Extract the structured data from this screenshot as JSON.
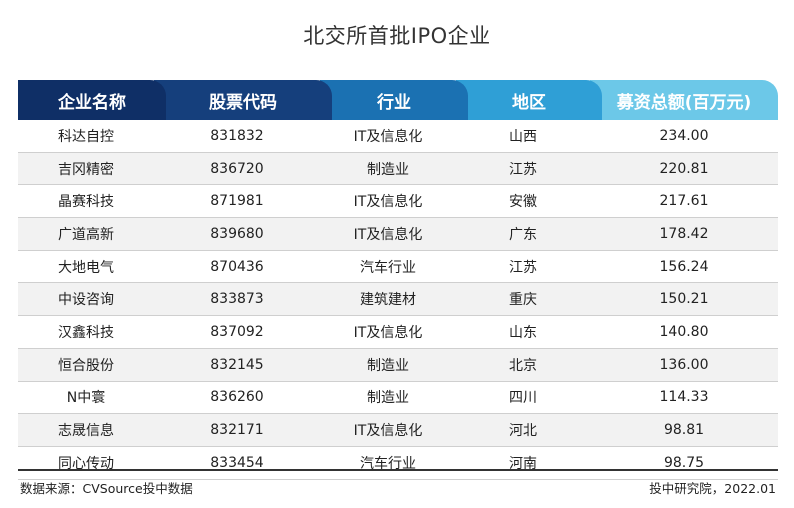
{
  "title": "北交所首批IPO企业",
  "colors": {
    "h0": "#0f2f66",
    "h1": "#153f7c",
    "h2": "#1b71b2",
    "h3": "#2f9fd6",
    "h4": "#6cc8e8"
  },
  "table": {
    "headers": [
      "企业名称",
      "股票代码",
      "行业",
      "地区",
      "募资总额(百万元)"
    ],
    "rows": [
      [
        "科达自控",
        "831832",
        "IT及信息化",
        "山西",
        "234.00"
      ],
      [
        "吉冈精密",
        "836720",
        "制造业",
        "江苏",
        "220.81"
      ],
      [
        "晶赛科技",
        "871981",
        "IT及信息化",
        "安徽",
        "217.61"
      ],
      [
        "广道高新",
        "839680",
        "IT及信息化",
        "广东",
        "178.42"
      ],
      [
        "大地电气",
        "870436",
        "汽车行业",
        "江苏",
        "156.24"
      ],
      [
        "中设咨询",
        "833873",
        "建筑建材",
        "重庆",
        "150.21"
      ],
      [
        "汉鑫科技",
        "837092",
        "IT及信息化",
        "山东",
        "140.80"
      ],
      [
        "恒合股份",
        "832145",
        "制造业",
        "北京",
        "136.00"
      ],
      [
        "N中寰",
        "836260",
        "制造业",
        "四川",
        "114.33"
      ],
      [
        "志晟信息",
        "832171",
        "IT及信息化",
        "河北",
        "98.81"
      ],
      [
        "同心传动",
        "833454",
        "汽车行业",
        "河南",
        "98.75"
      ]
    ]
  },
  "footer": {
    "source": "数据来源：CVSource投中数据",
    "credit": "投中研究院，2022.01"
  }
}
